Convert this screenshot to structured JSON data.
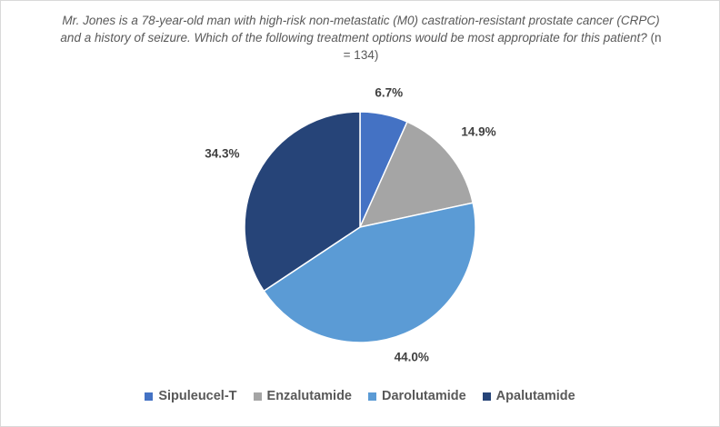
{
  "title": {
    "question": "Mr. Jones is a 78-year-old man with high-risk non-metastatic (M0) castration-resistant prostate cancer (CRPC) and a history of seizure. Which of the following treatment options would be most appropriate  for this patient?",
    "n_label": "(n = 134)"
  },
  "chart_data": {
    "type": "pie",
    "title": "Mr. Jones is a 78-year-old man with high-risk non-metastatic (M0) castration-resistant prostate cancer (CRPC) and a history of seizure. Which of the following treatment options would be most appropriate  for this patient? (n = 134)",
    "categories": [
      "Sipuleucel-T",
      "Enzalutamide",
      "Darolutamide",
      "Apalutamide"
    ],
    "values": [
      6.7,
      14.9,
      44.0,
      34.3
    ],
    "labels": [
      "6.7%",
      "14.9%",
      "44.0%",
      "34.3%"
    ],
    "colors": [
      "#4472C4",
      "#A5A5A5",
      "#5B9BD5",
      "#264478"
    ],
    "legend_position": "bottom"
  }
}
